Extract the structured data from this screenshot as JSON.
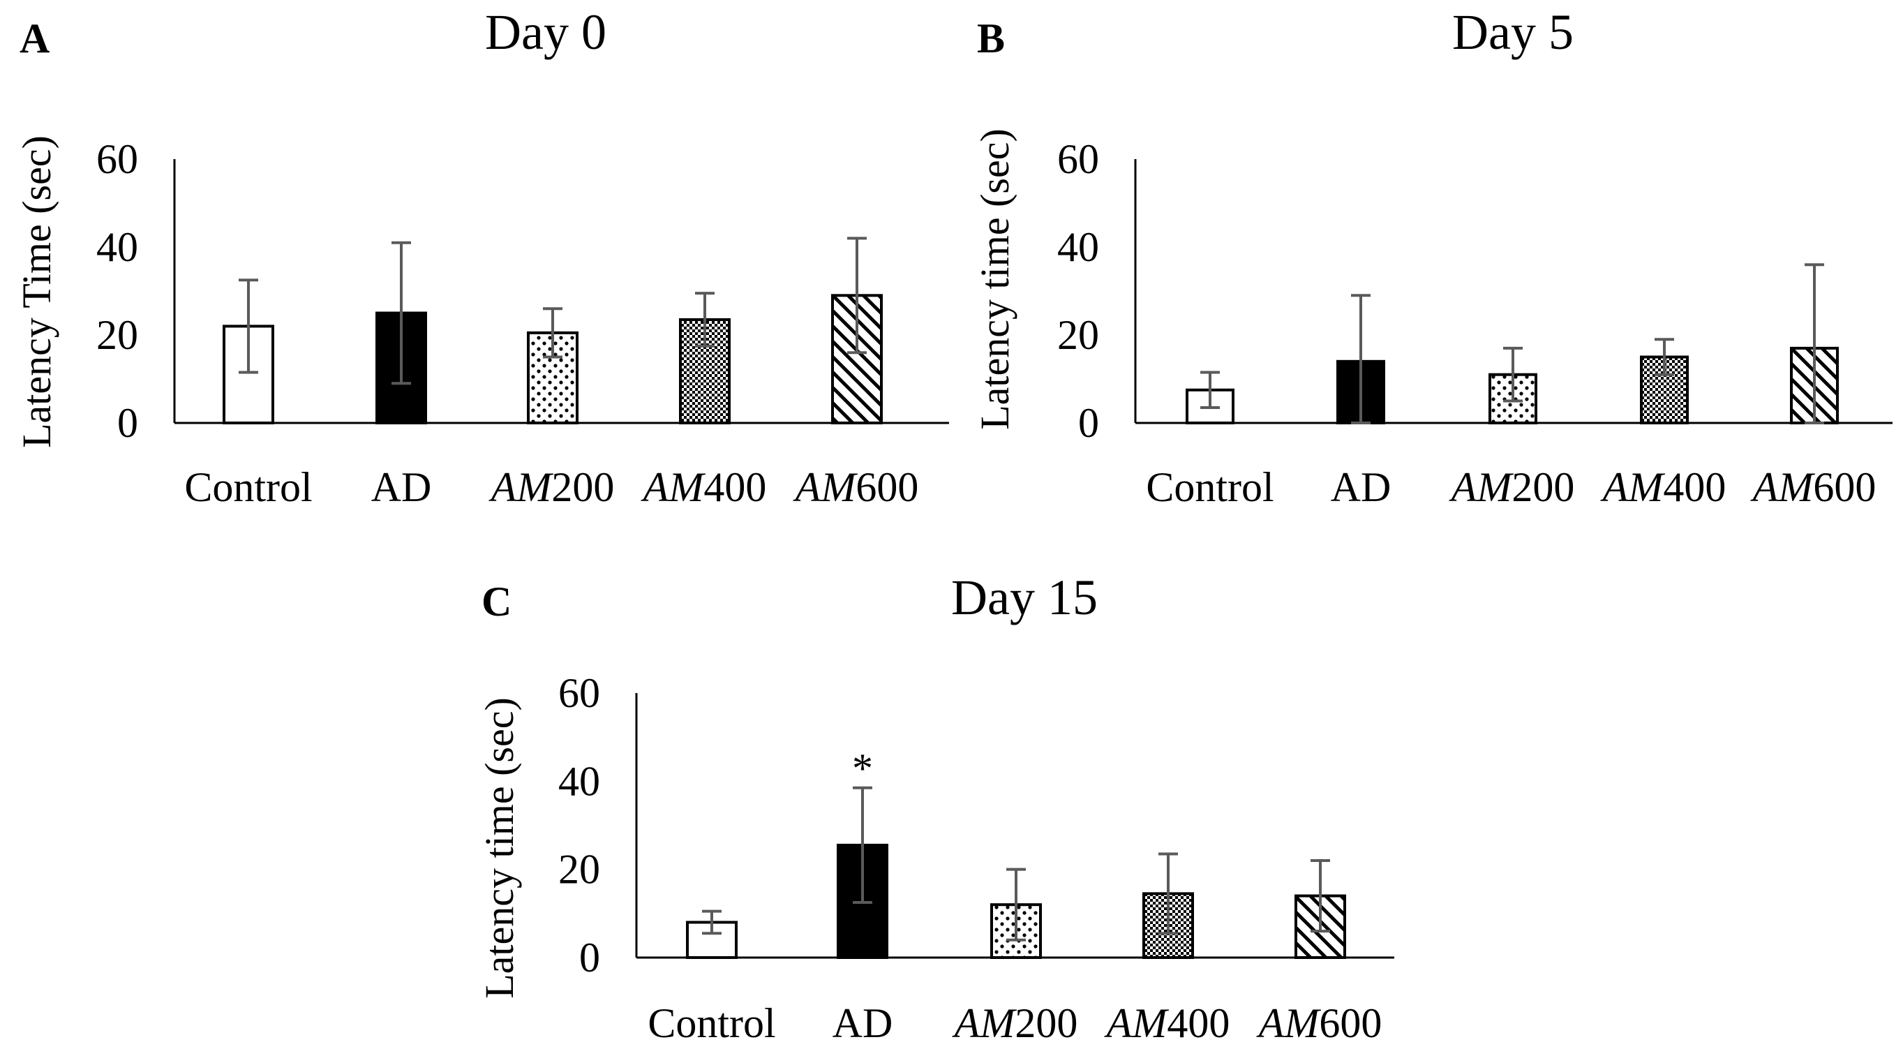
{
  "figure": {
    "panels": [
      "A",
      "B",
      "C"
    ]
  },
  "chart_data": [
    {
      "type": "bar",
      "panel": "A",
      "title": "Day 0",
      "ylabel": "Latency Time (sec)",
      "xlabel": "",
      "ylim": [
        0,
        60
      ],
      "yticks": [
        "0",
        "20",
        "40",
        "60"
      ],
      "categories": [
        "Control",
        "AD",
        "AM200",
        "AM400",
        "AM600"
      ],
      "category_display": [
        {
          "italic": "",
          "normal": "Control"
        },
        {
          "italic": "",
          "normal": "AD"
        },
        {
          "italic": "AM",
          "normal": "200"
        },
        {
          "italic": "AM",
          "normal": "400"
        },
        {
          "italic": "AM",
          "normal": "600"
        }
      ],
      "patterns": [
        "white",
        "black",
        "dots",
        "checker",
        "diagonal"
      ],
      "values": [
        22,
        25,
        20.5,
        23.5,
        29
      ],
      "errors": [
        10.5,
        16,
        5.5,
        6,
        13
      ],
      "annotations": []
    },
    {
      "type": "bar",
      "panel": "B",
      "title": "Day 5",
      "ylabel": "Latency time (sec)",
      "xlabel": "",
      "ylim": [
        0,
        60
      ],
      "yticks": [
        "0",
        "20",
        "40",
        "60"
      ],
      "categories": [
        "Control",
        "AD",
        "AM200",
        "AM400",
        "AM600"
      ],
      "category_display": [
        {
          "italic": "",
          "normal": "Control"
        },
        {
          "italic": "",
          "normal": "AD"
        },
        {
          "italic": "AM",
          "normal": "200"
        },
        {
          "italic": "AM",
          "normal": "400"
        },
        {
          "italic": "AM",
          "normal": "600"
        }
      ],
      "patterns": [
        "white",
        "black",
        "dots",
        "checker",
        "diagonal"
      ],
      "values": [
        7.5,
        14,
        11,
        15,
        17
      ],
      "errors": [
        4,
        15,
        6,
        4,
        19
      ],
      "annotations": []
    },
    {
      "type": "bar",
      "panel": "C",
      "title": "Day 15",
      "ylabel": "Latency time (sec)",
      "xlabel": "",
      "ylim": [
        0,
        60
      ],
      "yticks": [
        "0",
        "20",
        "40",
        "60"
      ],
      "categories": [
        "Control",
        "AD",
        "AM200",
        "AM400",
        "AM600"
      ],
      "category_display": [
        {
          "italic": "",
          "normal": "Control"
        },
        {
          "italic": "",
          "normal": "AD"
        },
        {
          "italic": "AM",
          "normal": "200"
        },
        {
          "italic": "AM",
          "normal": "400"
        },
        {
          "italic": "AM",
          "normal": "600"
        }
      ],
      "patterns": [
        "white",
        "black",
        "dots",
        "checker",
        "diagonal"
      ],
      "values": [
        8,
        25.5,
        12,
        14.5,
        14
      ],
      "errors": [
        2.5,
        13,
        8,
        9,
        8
      ],
      "annotations": [
        {
          "category_index": 1,
          "text": "*"
        }
      ]
    }
  ]
}
